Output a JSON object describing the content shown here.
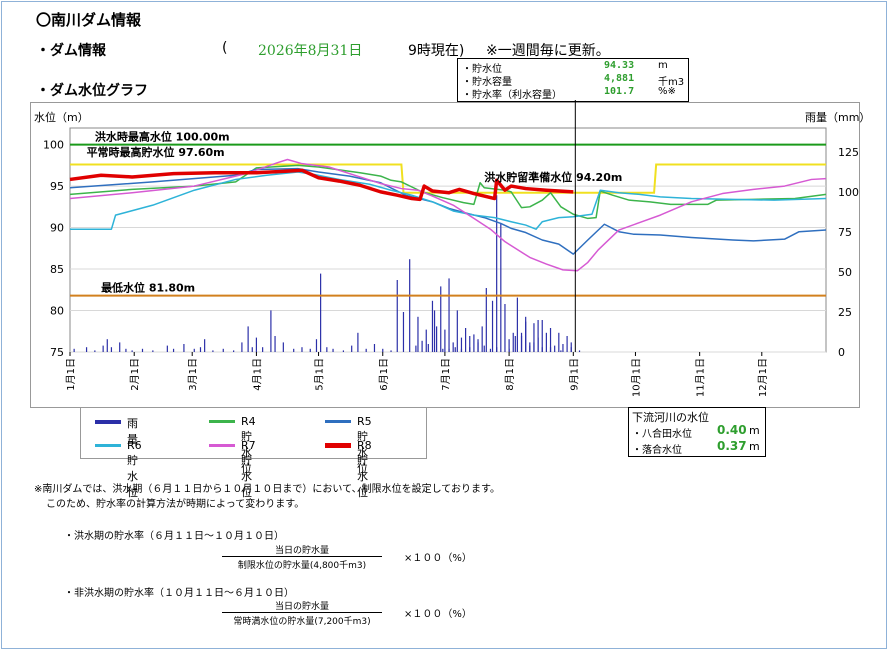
{
  "header": {
    "title": "〇南川ダム情報",
    "section1": "・ダム情報",
    "paren_open": "(",
    "date": "2026年8月31日",
    "time_note": "9時現在)",
    "update_note": "※一週間毎に更新。",
    "section2": "・ダム水位グラフ"
  },
  "info": {
    "rows": [
      {
        "label": "・貯水位",
        "value": "94.33",
        "unit": "m"
      },
      {
        "label": "・貯水容量",
        "value": "4,881",
        "unit": "千m3"
      },
      {
        "label": "・貯水率（利水容量）",
        "value": "101.7",
        "unit": "%※"
      }
    ]
  },
  "river": {
    "title": "下流河川の水位",
    "rows": [
      {
        "label": "・八合田水位",
        "value": "0.40",
        "unit": "m"
      },
      {
        "label": "・落合水位",
        "value": "0.37",
        "unit": "m"
      }
    ]
  },
  "legend": [
    {
      "label": "雨　量",
      "color": "#2b2fa8"
    },
    {
      "label": "R4貯水位",
      "color": "#3cb44b"
    },
    {
      "label": "R5貯水位",
      "color": "#2f6fbf"
    },
    {
      "label": "R6貯水位",
      "color": "#2eb3d8"
    },
    {
      "label": "R7貯水位",
      "color": "#d65ad3"
    },
    {
      "label": "R8貯水位",
      "color": "#e00000"
    }
  ],
  "notes": {
    "line1": "※南川ダムでは、洪水期（６月１１日から１０月１０日まで）において、制限水位を設定しております。",
    "line2": "このため、貯水率の計算方法が時期によって変わります。",
    "flood_title": "・洪水期の貯水率（６月１１日～１０月１０日）",
    "flood_num": "当日の貯水量",
    "flood_den": "制限水位の貯水量(4,800千m3)",
    "flood_mult": "×１００（%）",
    "nonflood_title": "・非洪水期の貯水率（１０月１１日～６月１０日）",
    "nonflood_num": "当日の貯水量",
    "nonflood_den": "常時満水位の貯水量(7,200千m3)",
    "nonflood_mult": "×１００（%）"
  },
  "chart_data": {
    "type": "line",
    "ylabel": "水位（m）",
    "y2label": "雨量（mm）",
    "ylim": [
      75,
      102
    ],
    "yticks": [
      "75",
      "80",
      "85",
      "90",
      "95",
      "100"
    ],
    "y2lim": [
      0,
      140
    ],
    "y2ticks": [
      "0",
      "25",
      "50",
      "75",
      "100",
      "125"
    ],
    "xlim": [
      0,
      365
    ],
    "months": [
      "1月1日",
      "2月1日",
      "3月1日",
      "4月1日",
      "5月1日",
      "6月1日",
      "7月1日",
      "8月1日",
      "9月1日",
      "10月1日",
      "11月1日",
      "12月1日"
    ],
    "month_days": [
      0,
      31,
      59,
      90,
      120,
      151,
      181,
      212,
      243,
      273,
      304,
      334
    ],
    "reference_lines": [
      {
        "label": "洪水時最高水位 100.00m",
        "value": 100.0,
        "color": "#1a9a1a"
      },
      {
        "label": "最低水位 81.80m",
        "value": 81.8,
        "color": "#d2801e"
      }
    ],
    "annotations": [
      {
        "label": "平常時最高貯水位 97.60m",
        "day": 8,
        "value": 98.6
      },
      {
        "label": "洪水貯留準備水位 94.20m",
        "day": 200,
        "value": 95.6
      }
    ],
    "limit_line": {
      "color": "#f0e020",
      "points": [
        [
          0,
          97.6
        ],
        [
          160,
          97.6
        ],
        [
          161,
          94.2
        ],
        [
          282,
          94.2
        ],
        [
          283,
          97.6
        ],
        [
          365,
          97.6
        ]
      ]
    },
    "series": [
      {
        "name": "R4貯水位",
        "color": "#3cb44b",
        "width": 1.5,
        "points": [
          [
            0,
            94
          ],
          [
            30,
            94.6
          ],
          [
            60,
            95
          ],
          [
            80,
            95.5
          ],
          [
            90,
            97.2
          ],
          [
            110,
            97.5
          ],
          [
            120,
            97.3
          ],
          [
            140,
            96.6
          ],
          [
            150,
            96.2
          ],
          [
            155,
            95.7
          ],
          [
            160,
            95.5
          ],
          [
            170,
            94.3
          ],
          [
            180,
            93.6
          ],
          [
            190,
            93
          ],
          [
            195,
            92.8
          ],
          [
            198,
            95.4
          ],
          [
            200,
            94.8
          ],
          [
            210,
            94.5
          ],
          [
            213,
            94.3
          ],
          [
            218,
            92.4
          ],
          [
            222,
            92.5
          ],
          [
            228,
            93.3
          ],
          [
            232,
            94.2
          ],
          [
            237,
            92.5
          ],
          [
            243,
            91.6
          ],
          [
            250,
            91.1
          ],
          [
            254,
            91.2
          ],
          [
            256,
            94.4
          ],
          [
            262,
            93.9
          ],
          [
            270,
            93.3
          ],
          [
            280,
            93.1
          ],
          [
            290,
            92.8
          ],
          [
            300,
            92.8
          ],
          [
            308,
            92.8
          ],
          [
            312,
            93.3
          ],
          [
            330,
            93.4
          ],
          [
            350,
            93.5
          ],
          [
            365,
            94
          ]
        ]
      },
      {
        "name": "R5貯水位",
        "color": "#2f6fbf",
        "width": 1.5,
        "points": [
          [
            0,
            94.8
          ],
          [
            40,
            95.5
          ],
          [
            80,
            96.3
          ],
          [
            90,
            97
          ],
          [
            110,
            97.1
          ],
          [
            120,
            96.7
          ],
          [
            135,
            96.2
          ],
          [
            150,
            95.4
          ],
          [
            162,
            93.9
          ],
          [
            175,
            93.1
          ],
          [
            183,
            92.3
          ],
          [
            192,
            91.7
          ],
          [
            200,
            91.2
          ],
          [
            208,
            90.5
          ],
          [
            213,
            89.9
          ],
          [
            220,
            89.4
          ],
          [
            228,
            88.5
          ],
          [
            236,
            88
          ],
          [
            243,
            86.8
          ],
          [
            250,
            88.5
          ],
          [
            258,
            90.4
          ],
          [
            265,
            89.5
          ],
          [
            272,
            89.2
          ],
          [
            285,
            89.1
          ],
          [
            300,
            88.8
          ],
          [
            320,
            88.5
          ],
          [
            330,
            88.4
          ],
          [
            345,
            88.6
          ],
          [
            352,
            89.5
          ],
          [
            365,
            89.7
          ]
        ]
      },
      {
        "name": "R6貯水位",
        "color": "#2eb3d8",
        "width": 1.5,
        "points": [
          [
            0,
            89.8
          ],
          [
            20,
            89.8
          ],
          [
            22,
            91.5
          ],
          [
            40,
            92.7
          ],
          [
            60,
            94.5
          ],
          [
            80,
            95.8
          ],
          [
            95,
            96.3
          ],
          [
            110,
            96.7
          ],
          [
            118,
            96.4
          ],
          [
            130,
            95.8
          ],
          [
            145,
            95.2
          ],
          [
            155,
            94.5
          ],
          [
            165,
            93.9
          ],
          [
            175,
            93.1
          ],
          [
            185,
            92
          ],
          [
            195,
            91.5
          ],
          [
            205,
            91.2
          ],
          [
            213,
            90.7
          ],
          [
            220,
            90.3
          ],
          [
            225,
            89.8
          ],
          [
            228,
            90.7
          ],
          [
            236,
            91.2
          ],
          [
            243,
            91.3
          ],
          [
            252,
            91.6
          ],
          [
            256,
            94.5
          ],
          [
            265,
            94.2
          ],
          [
            275,
            94
          ],
          [
            285,
            93.7
          ],
          [
            300,
            93.5
          ],
          [
            320,
            93.4
          ],
          [
            340,
            93.3
          ],
          [
            365,
            93.5
          ]
        ]
      },
      {
        "name": "R7貯水位",
        "color": "#d65ad3",
        "width": 1.5,
        "points": [
          [
            0,
            93.5
          ],
          [
            30,
            94.2
          ],
          [
            60,
            95
          ],
          [
            85,
            96.5
          ],
          [
            100,
            97.8
          ],
          [
            105,
            98.2
          ],
          [
            112,
            97.7
          ],
          [
            125,
            97.3
          ],
          [
            140,
            96.1
          ],
          [
            150,
            95.3
          ],
          [
            160,
            94.7
          ],
          [
            168,
            94.5
          ],
          [
            175,
            93.8
          ],
          [
            185,
            92.7
          ],
          [
            195,
            91.1
          ],
          [
            203,
            89.8
          ],
          [
            210,
            88.3
          ],
          [
            215,
            87.5
          ],
          [
            222,
            86.4
          ],
          [
            230,
            85.6
          ],
          [
            238,
            84.9
          ],
          [
            245,
            84.8
          ],
          [
            250,
            85.8
          ],
          [
            255,
            87.3
          ],
          [
            265,
            89.7
          ],
          [
            275,
            90.6
          ],
          [
            285,
            91.5
          ],
          [
            300,
            93.1
          ],
          [
            315,
            94.1
          ],
          [
            330,
            94.6
          ],
          [
            345,
            95
          ],
          [
            358,
            95.8
          ],
          [
            365,
            95.9
          ]
        ]
      },
      {
        "name": "R8貯水位",
        "color": "#e00000",
        "width": 3.5,
        "points": [
          [
            0,
            95.8
          ],
          [
            15,
            96.3
          ],
          [
            30,
            96.1
          ],
          [
            50,
            96.5
          ],
          [
            70,
            96.6
          ],
          [
            90,
            96.6
          ],
          [
            105,
            96.8
          ],
          [
            112,
            96.9
          ],
          [
            120,
            96
          ],
          [
            130,
            95.6
          ],
          [
            140,
            95.1
          ],
          [
            150,
            94.3
          ],
          [
            158,
            93.9
          ],
          [
            165,
            93.5
          ],
          [
            169,
            93.4
          ],
          [
            171,
            95
          ],
          [
            175,
            94.4
          ],
          [
            183,
            94.2
          ],
          [
            188,
            94.6
          ],
          [
            195,
            94.1
          ],
          [
            205,
            93.5
          ],
          [
            206,
            95.7
          ],
          [
            210,
            94.5
          ],
          [
            213,
            95
          ],
          [
            220,
            94.7
          ],
          [
            230,
            94.5
          ],
          [
            243,
            94.3
          ]
        ]
      }
    ],
    "rainfall": {
      "color": "#2b2fa8",
      "points": [
        [
          2,
          2
        ],
        [
          8,
          3
        ],
        [
          12,
          1
        ],
        [
          16,
          4
        ],
        [
          18,
          8
        ],
        [
          20,
          3
        ],
        [
          24,
          6
        ],
        [
          27,
          2
        ],
        [
          30,
          1
        ],
        [
          35,
          2
        ],
        [
          40,
          1
        ],
        [
          47,
          4
        ],
        [
          50,
          2
        ],
        [
          55,
          5
        ],
        [
          60,
          2
        ],
        [
          63,
          3
        ],
        [
          65,
          8
        ],
        [
          69,
          1
        ],
        [
          74,
          2
        ],
        [
          79,
          1
        ],
        [
          83,
          6
        ],
        [
          86,
          16
        ],
        [
          88,
          3
        ],
        [
          90,
          9
        ],
        [
          93,
          3
        ],
        [
          97,
          26
        ],
        [
          99,
          10
        ],
        [
          103,
          6
        ],
        [
          108,
          2
        ],
        [
          112,
          3
        ],
        [
          116,
          2
        ],
        [
          119,
          8
        ],
        [
          121,
          49
        ],
        [
          124,
          3
        ],
        [
          127,
          2
        ],
        [
          132,
          1
        ],
        [
          136,
          4
        ],
        [
          139,
          12
        ],
        [
          143,
          2
        ],
        [
          147,
          5
        ],
        [
          151,
          2
        ],
        [
          155,
          1
        ],
        [
          158,
          45
        ],
        [
          161,
          25
        ],
        [
          164,
          58
        ],
        [
          167,
          4
        ],
        [
          170,
          7
        ],
        [
          173,
          5
        ],
        [
          176,
          26
        ],
        [
          180,
          2
        ],
        [
          183,
          2
        ],
        [
          186,
          3
        ],
        [
          189,
          2
        ],
        [
          193,
          3
        ],
        [
          197,
          8
        ],
        [
          200,
          4
        ],
        [
          203,
          2
        ],
        [
          206,
          3
        ],
        [
          212,
          2
        ],
        [
          215,
          10
        ],
        [
          218,
          12
        ],
        [
          220,
          19
        ],
        [
          222,
          4
        ],
        [
          224,
          6
        ],
        [
          226,
          20
        ],
        [
          228,
          3
        ],
        [
          232,
          3
        ],
        [
          237,
          1
        ],
        [
          242,
          3
        ],
        [
          246,
          1
        ],
        [
          168,
          22
        ],
        [
          172,
          14
        ],
        [
          175,
          32
        ],
        [
          177,
          16
        ],
        [
          179,
          41
        ],
        [
          181,
          14
        ],
        [
          183,
          46
        ],
        [
          185,
          6
        ],
        [
          187,
          26
        ],
        [
          189,
          9
        ],
        [
          191,
          15
        ],
        [
          193,
          10
        ],
        [
          195,
          11
        ],
        [
          197,
          6
        ],
        [
          199,
          16
        ],
        [
          201,
          40
        ],
        [
          204,
          32
        ],
        [
          206,
          98
        ],
        [
          208,
          80
        ],
        [
          210,
          30
        ],
        [
          212,
          8
        ],
        [
          214,
          12
        ],
        [
          216,
          34
        ],
        [
          218,
          10
        ],
        [
          220,
          22
        ],
        [
          222,
          6
        ],
        [
          224,
          18
        ],
        [
          226,
          9
        ],
        [
          228,
          20
        ],
        [
          230,
          12
        ],
        [
          232,
          15
        ],
        [
          234,
          4
        ],
        [
          236,
          12
        ],
        [
          238,
          5
        ],
        [
          240,
          10
        ],
        [
          242,
          6
        ]
      ]
    }
  }
}
